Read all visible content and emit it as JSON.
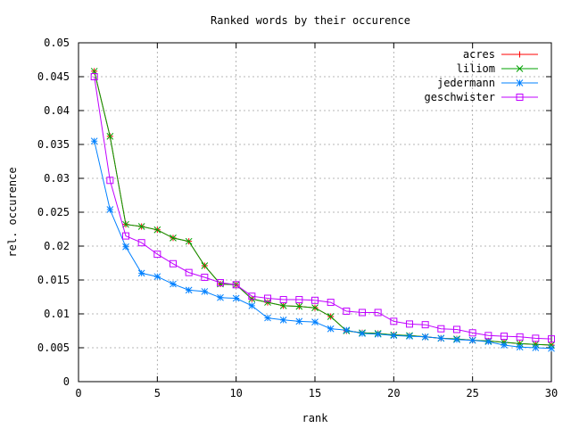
{
  "chart_data": {
    "type": "line",
    "title": "Ranked words by their occurence",
    "xlabel": "rank",
    "ylabel": "rel. occurence",
    "xlim": [
      0,
      30
    ],
    "ylim": [
      0,
      0.05
    ],
    "xticks": [
      "0",
      "5",
      "10",
      "15",
      "20",
      "25",
      "30"
    ],
    "yticks": [
      "0",
      "0.005",
      "0.01",
      "0.015",
      "0.02",
      "0.025",
      "0.03",
      "0.035",
      "0.04",
      "0.045",
      "0.05"
    ],
    "grid": true,
    "legend_position": "top-right",
    "x": [
      1,
      2,
      3,
      4,
      5,
      6,
      7,
      8,
      9,
      10,
      11,
      12,
      13,
      14,
      15,
      16,
      17,
      18,
      19,
      20,
      21,
      22,
      23,
      24,
      25,
      26,
      27,
      28,
      29,
      30
    ],
    "series": [
      {
        "name": "acres",
        "color": "#ff0000",
        "marker": "plus",
        "values": [
          0.0458,
          0.0362,
          0.0232,
          0.0229,
          0.0224,
          0.0212,
          0.0207,
          0.0171,
          0.0144,
          0.0143,
          0.0122,
          0.0117,
          0.0112,
          0.0111,
          0.0109,
          0.0096,
          0.0075,
          0.0072,
          0.0071,
          0.0069,
          0.0068,
          0.0066,
          0.0064,
          0.0063,
          0.0061,
          0.006,
          0.0058,
          0.0056,
          0.0055,
          0.0054
        ]
      },
      {
        "name": "liliom",
        "color": "#00a000",
        "marker": "cross",
        "values": [
          0.0458,
          0.0362,
          0.0232,
          0.0229,
          0.0224,
          0.0212,
          0.0207,
          0.0171,
          0.0144,
          0.0143,
          0.0122,
          0.0117,
          0.0112,
          0.0111,
          0.0109,
          0.0096,
          0.0075,
          0.0072,
          0.0071,
          0.0069,
          0.0068,
          0.0066,
          0.0064,
          0.0063,
          0.0061,
          0.006,
          0.0058,
          0.0056,
          0.0055,
          0.0054
        ]
      },
      {
        "name": "jedermann",
        "color": "#0080ff",
        "marker": "star",
        "values": [
          0.0355,
          0.0254,
          0.0199,
          0.016,
          0.0155,
          0.0144,
          0.0135,
          0.0133,
          0.0124,
          0.0123,
          0.0112,
          0.0094,
          0.0091,
          0.0089,
          0.0088,
          0.0078,
          0.0076,
          0.0071,
          0.007,
          0.0068,
          0.0067,
          0.0066,
          0.0064,
          0.0062,
          0.0061,
          0.0059,
          0.0054,
          0.0051,
          0.005,
          0.0049
        ]
      },
      {
        "name": "geschwister",
        "color": "#c000ff",
        "marker": "square",
        "values": [
          0.045,
          0.0297,
          0.0215,
          0.0205,
          0.0188,
          0.0174,
          0.0161,
          0.0154,
          0.0146,
          0.0143,
          0.0126,
          0.0123,
          0.0121,
          0.0121,
          0.012,
          0.0117,
          0.0104,
          0.0102,
          0.0102,
          0.0089,
          0.0085,
          0.0084,
          0.0078,
          0.0077,
          0.0072,
          0.0068,
          0.0067,
          0.0066,
          0.0064,
          0.0063
        ]
      }
    ]
  }
}
